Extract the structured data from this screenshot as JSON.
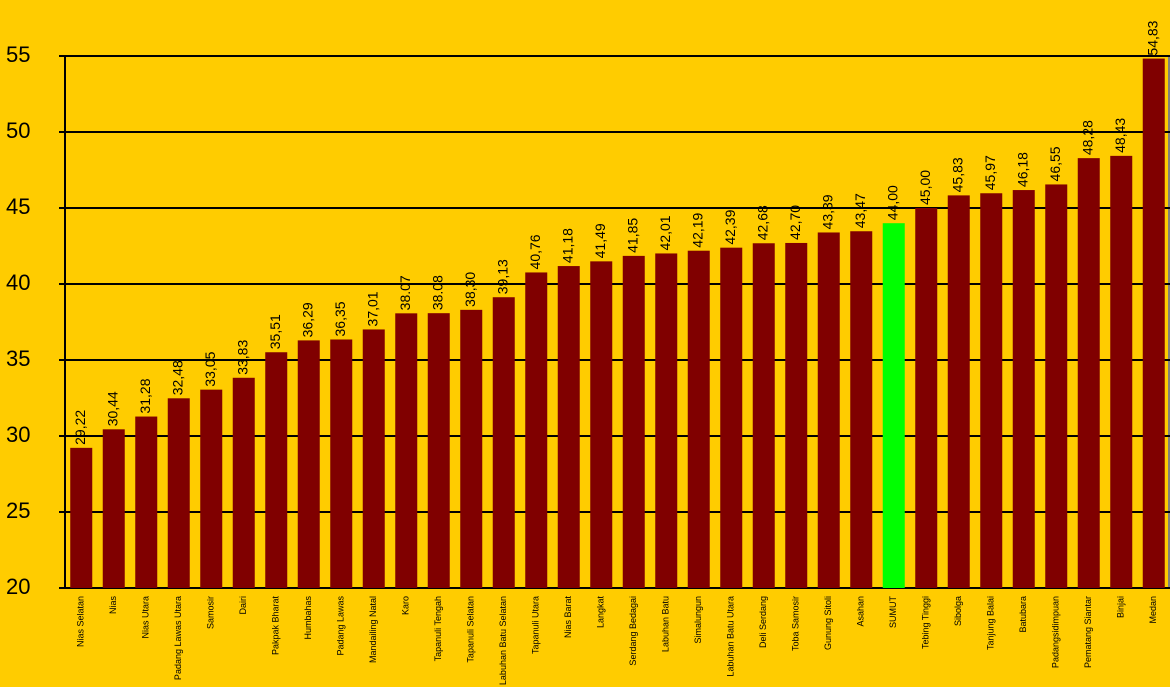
{
  "chart_data": {
    "type": "bar",
    "categories": [
      "Nias Selatan",
      "Nias",
      "Nias Utara",
      "Padang Lawas Utara",
      "Samosir",
      "Dairi",
      "Pakpak Bharat",
      "Humbahas",
      "Padang Lawas",
      "Mandailing Natal",
      "Karo",
      "Tapanuli Tengah",
      "Tapanuli Selatan",
      "Labuhan Batu Selatan",
      "Tapanuli Utara",
      "Nias Barat",
      "Langkat",
      "Serdang Bedagai",
      "Labuhan Batu",
      "Simalungun",
      "Labuhan Batu Utara",
      "Deli Serdang",
      "Toba Samosir",
      "Gunung Sitoli",
      "Asahan",
      "SUMUT",
      "Tebing Tinggi",
      "Sibolga",
      "Tanjung Balai",
      "Batubara",
      "Padangsidimpuan",
      "Pematang Siantar",
      "Binjai",
      "Medan"
    ],
    "values": [
      29.22,
      30.44,
      31.28,
      32.48,
      33.05,
      33.83,
      35.51,
      36.29,
      36.35,
      37.01,
      38.07,
      38.08,
      38.3,
      39.13,
      40.76,
      41.18,
      41.49,
      41.85,
      42.01,
      42.19,
      42.39,
      42.68,
      42.7,
      43.39,
      43.47,
      44.0,
      45.0,
      45.83,
      45.97,
      46.18,
      46.55,
      48.28,
      48.43,
      54.83
    ],
    "value_labels": [
      "29,22",
      "30,44",
      "31,28",
      "32,48",
      "33,05",
      "33,83",
      "35,51",
      "36,29",
      "36,35",
      "37,01",
      "38.07",
      "38.08",
      "38,30",
      "39,13",
      "40,76",
      "41,18",
      "41,49",
      "41,85",
      "42,01",
      "42,19",
      "42,39",
      "42,68",
      "42,70",
      "43,39",
      "43,47",
      "44,00",
      "45,00",
      "45,83",
      "45,97",
      "46,18",
      "46,55",
      "48,28",
      "48,43",
      "54,83"
    ],
    "colors": [
      "#800000",
      "#800000",
      "#800000",
      "#800000",
      "#800000",
      "#800000",
      "#800000",
      "#800000",
      "#800000",
      "#800000",
      "#800000",
      "#800000",
      "#800000",
      "#800000",
      "#800000",
      "#800000",
      "#800000",
      "#800000",
      "#800000",
      "#800000",
      "#800000",
      "#800000",
      "#800000",
      "#800000",
      "#800000",
      "#00ff00",
      "#800000",
      "#800000",
      "#800000",
      "#800000",
      "#800000",
      "#800000",
      "#800000",
      "#800000"
    ],
    "ylim": [
      20,
      55
    ],
    "yticks": [
      20,
      25,
      30,
      35,
      40,
      45,
      50,
      55
    ],
    "grid": true
  }
}
